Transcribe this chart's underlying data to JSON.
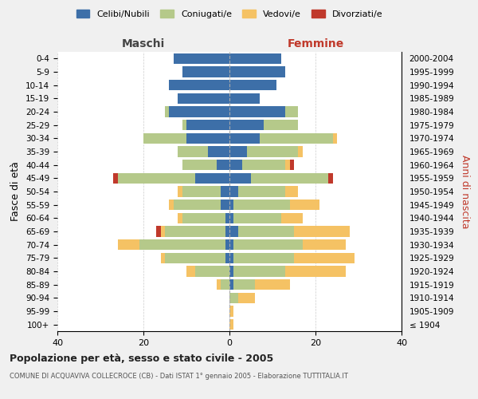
{
  "age_groups": [
    "100+",
    "95-99",
    "90-94",
    "85-89",
    "80-84",
    "75-79",
    "70-74",
    "65-69",
    "60-64",
    "55-59",
    "50-54",
    "45-49",
    "40-44",
    "35-39",
    "30-34",
    "25-29",
    "20-24",
    "15-19",
    "10-14",
    "5-9",
    "0-4"
  ],
  "birth_years": [
    "≤ 1904",
    "1905-1909",
    "1910-1914",
    "1915-1919",
    "1920-1924",
    "1925-1929",
    "1930-1934",
    "1935-1939",
    "1940-1944",
    "1945-1949",
    "1950-1954",
    "1955-1959",
    "1960-1964",
    "1965-1969",
    "1970-1974",
    "1975-1979",
    "1980-1984",
    "1985-1989",
    "1990-1994",
    "1995-1999",
    "2000-2004"
  ],
  "colors": {
    "celibi": "#3d6fa8",
    "coniugati": "#b5c98a",
    "vedovi": "#f5c264",
    "divorziati": "#c0392b"
  },
  "maschi": {
    "celibi": [
      0,
      0,
      0,
      0,
      0,
      1,
      1,
      1,
      1,
      2,
      2,
      8,
      3,
      5,
      10,
      10,
      14,
      12,
      14,
      11,
      13
    ],
    "coniugati": [
      0,
      0,
      0,
      2,
      8,
      14,
      20,
      14,
      10,
      11,
      9,
      18,
      8,
      7,
      10,
      1,
      1,
      0,
      0,
      0,
      0
    ],
    "vedovi": [
      0,
      0,
      0,
      1,
      2,
      1,
      5,
      1,
      1,
      1,
      1,
      0,
      0,
      0,
      0,
      0,
      0,
      0,
      0,
      0,
      0
    ],
    "divorziati": [
      0,
      0,
      0,
      0,
      0,
      0,
      0,
      1,
      0,
      0,
      0,
      1,
      0,
      0,
      0,
      0,
      0,
      0,
      0,
      0,
      0
    ]
  },
  "femmine": {
    "celibi": [
      0,
      0,
      0,
      1,
      1,
      1,
      1,
      2,
      1,
      1,
      2,
      5,
      3,
      4,
      7,
      8,
      13,
      7,
      11,
      13,
      12
    ],
    "coniugati": [
      0,
      0,
      2,
      5,
      12,
      14,
      16,
      13,
      11,
      13,
      11,
      18,
      10,
      12,
      17,
      8,
      3,
      0,
      0,
      0,
      0
    ],
    "vedovi": [
      1,
      1,
      4,
      8,
      14,
      14,
      10,
      13,
      5,
      7,
      3,
      0,
      1,
      1,
      1,
      0,
      0,
      0,
      0,
      0,
      0
    ],
    "divorziati": [
      0,
      0,
      0,
      0,
      0,
      0,
      0,
      0,
      0,
      0,
      0,
      1,
      1,
      0,
      0,
      0,
      0,
      0,
      0,
      0,
      0
    ]
  },
  "xlim": 40,
  "title": "Popolazione per età, sesso e stato civile - 2005",
  "subtitle": "COMUNE DI ACQUAVIVA COLLECROCE (CB) - Dati ISTAT 1° gennaio 2005 - Elaborazione TUTTITALIA.IT",
  "ylabel_left": "Fasce di età",
  "ylabel_right": "Anni di nascita",
  "legend_labels": [
    "Celibi/Nubili",
    "Coniugati/e",
    "Vedovi/e",
    "Divorziati/e"
  ],
  "background_color": "#f0f0f0",
  "plot_bg_color": "#ffffff"
}
